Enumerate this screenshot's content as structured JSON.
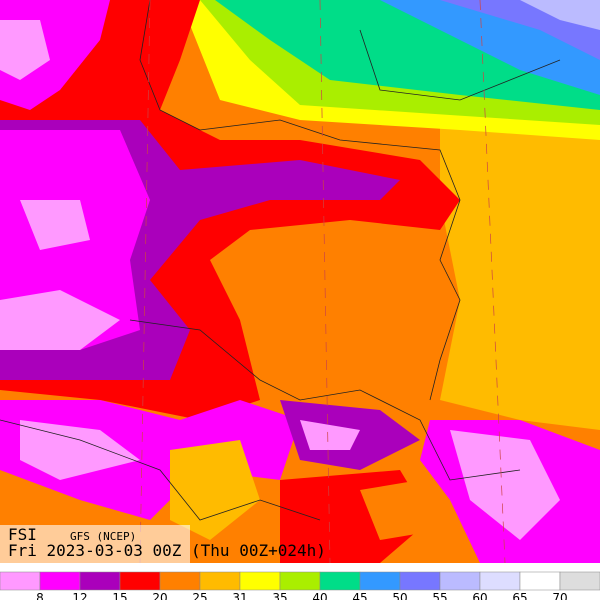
{
  "info": {
    "title": "FSI",
    "model": "GFS (NCEP)",
    "valid": "Fri 2023-03-03 00Z (Thu 00Z+024h)"
  },
  "legend": {
    "colors": [
      "#ff99ff",
      "#ff00ff",
      "#aa00bb",
      "#ff0000",
      "#ff8000",
      "#ffbb00",
      "#ffff00",
      "#aaee00",
      "#00dd88",
      "#3399ff",
      "#7777ff",
      "#bbbbff",
      "#ddddff",
      "#ffffff",
      "#dddddd"
    ],
    "ticks": [
      8,
      12,
      15,
      20,
      25,
      31,
      35,
      40,
      45,
      50,
      55,
      60,
      65,
      70
    ]
  }
}
